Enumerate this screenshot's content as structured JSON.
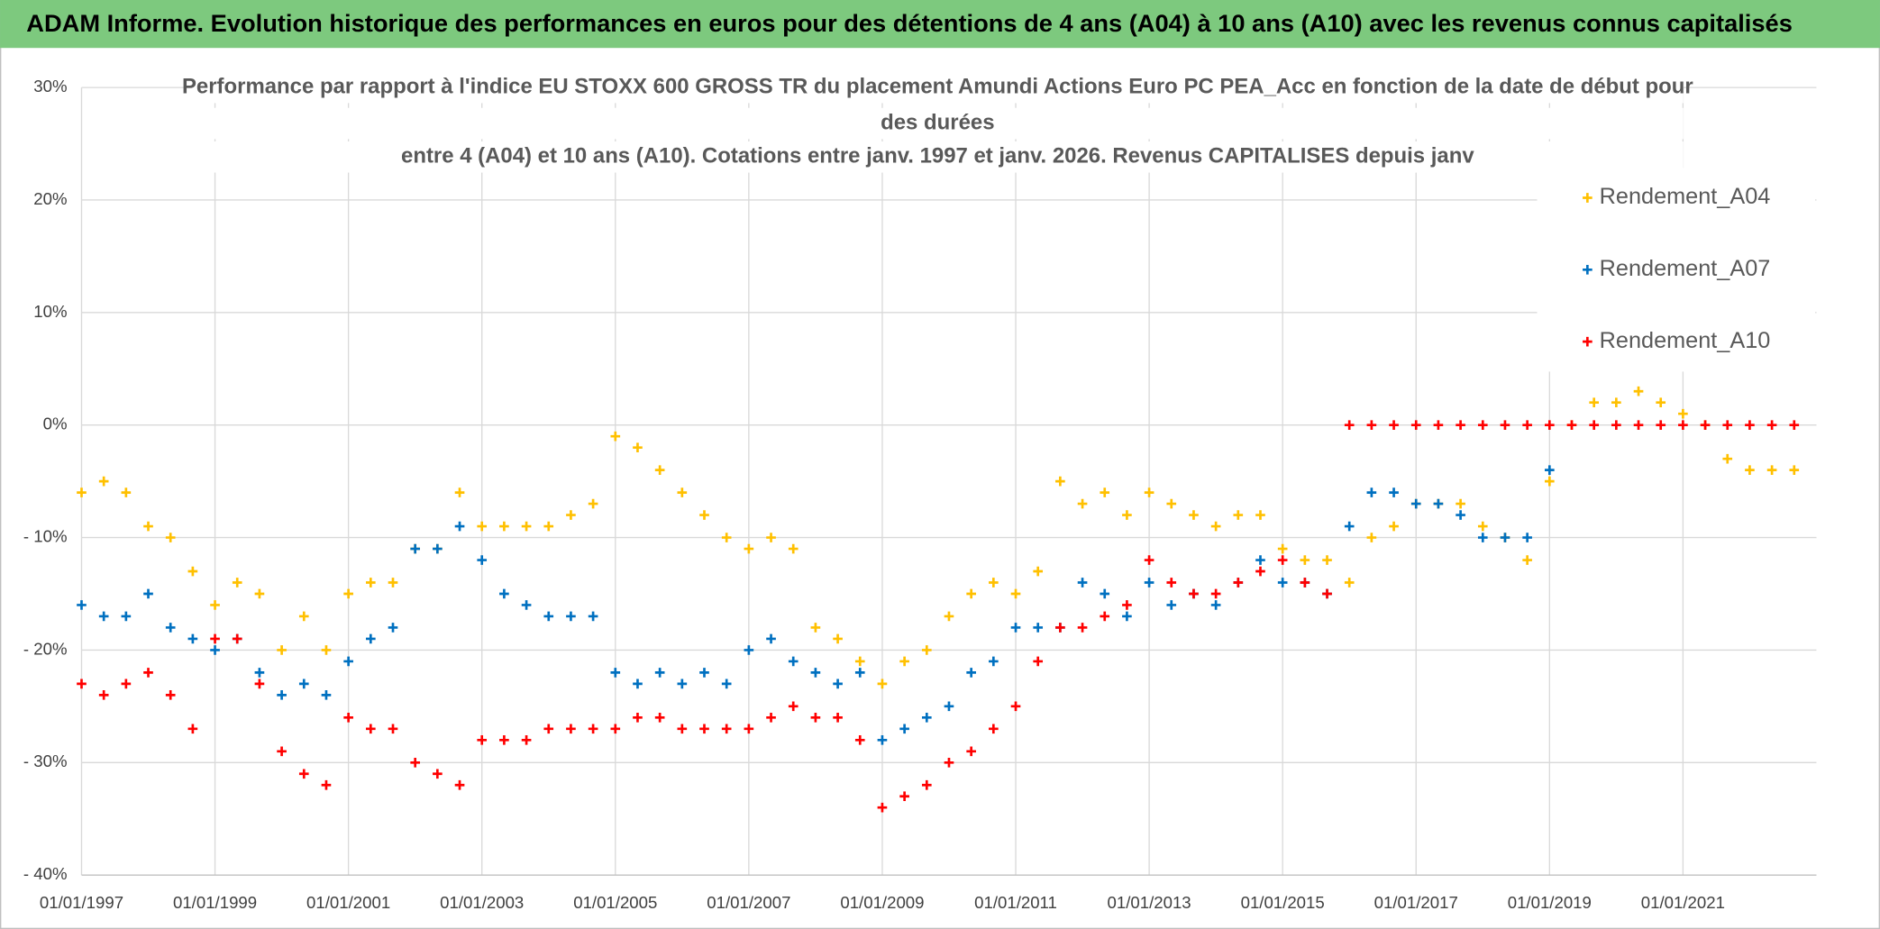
{
  "header": {
    "title": "ADAM Informe. Evolution historique des performances en euros pour des détentions de 4 ans (A04) à 10 ans (A10) avec les revenus connus capitalisés"
  },
  "chart_data": {
    "type": "scatter",
    "title": [
      "Performance par rapport à l'indice EU STOXX 600 GROSS TR  du placement Amundi Actions Euro PC PEA_Acc en fonction de la date de début pour",
      "des durées",
      "entre 4 (A04) et 10 ans (A10). Cotations entre janv. 1997 et janv. 2026. Revenus CAPITALISES depuis janv"
    ],
    "x": [
      "01/01/1997",
      "01/05/1997",
      "01/09/1997",
      "01/01/1998",
      "01/05/1998",
      "01/09/1998",
      "01/01/1999",
      "01/05/1999",
      "01/09/1999",
      "01/01/2000",
      "01/05/2000",
      "01/09/2000",
      "01/01/2001",
      "01/05/2001",
      "01/09/2001",
      "01/01/2002",
      "01/05/2002",
      "01/09/2002",
      "01/01/2003",
      "01/05/2003",
      "01/09/2003",
      "01/01/2004",
      "01/05/2004",
      "01/09/2004",
      "01/01/2005",
      "01/05/2005",
      "01/09/2005",
      "01/01/2006",
      "01/05/2006",
      "01/09/2006",
      "01/01/2007",
      "01/05/2007",
      "01/09/2007",
      "01/01/2008",
      "01/05/2008",
      "01/09/2008",
      "01/01/2009",
      "01/05/2009",
      "01/09/2009",
      "01/01/2010",
      "01/05/2010",
      "01/09/2010",
      "01/01/2011",
      "01/05/2011",
      "01/09/2011",
      "01/01/2012",
      "01/05/2012",
      "01/09/2012",
      "01/01/2013",
      "01/05/2013",
      "01/09/2013",
      "01/01/2014",
      "01/05/2014",
      "01/09/2014",
      "01/01/2015",
      "01/05/2015",
      "01/09/2015",
      "01/01/2016",
      "01/05/2016",
      "01/09/2016",
      "01/01/2017",
      "01/05/2017",
      "01/09/2017",
      "01/01/2018",
      "01/05/2018",
      "01/09/2018",
      "01/01/2019",
      "01/05/2019",
      "01/09/2019",
      "01/01/2020",
      "01/05/2020",
      "01/09/2020",
      "01/01/2021",
      "01/05/2021",
      "01/09/2021",
      "01/01/2022",
      "01/05/2022",
      "01/09/2022"
    ],
    "series": [
      {
        "name": "Rendement_A04",
        "color": "#ffc000",
        "values": [
          -6,
          -5,
          -6,
          -9,
          -10,
          -13,
          -16,
          -14,
          -15,
          -20,
          -17,
          -20,
          -15,
          -14,
          -14,
          -11,
          -11,
          -6,
          -9,
          -9,
          -9,
          -9,
          -8,
          -7,
          -1,
          -2,
          -4,
          -6,
          -8,
          -10,
          -11,
          -10,
          -11,
          -18,
          -19,
          -21,
          -23,
          -21,
          -20,
          -17,
          -15,
          -14,
          -15,
          -13,
          -5,
          -7,
          -6,
          -8,
          -6,
          -7,
          -8,
          -9,
          -8,
          -8,
          -11,
          -12,
          -12,
          -14,
          -10,
          -9,
          -7,
          -7,
          -7,
          -9,
          -10,
          -12,
          -5,
          0,
          2,
          2,
          3,
          2,
          1,
          0,
          -3,
          -4,
          -4,
          -4
        ]
      },
      {
        "name": "Rendement_A07",
        "color": "#0070c0",
        "values": [
          -16,
          -17,
          -17,
          -15,
          -18,
          -19,
          -20,
          -19,
          -22,
          -24,
          -23,
          -24,
          -21,
          -19,
          -18,
          -11,
          -11,
          -9,
          -12,
          -15,
          -16,
          -17,
          -17,
          -17,
          -22,
          -23,
          -22,
          -23,
          -22,
          -23,
          -20,
          -19,
          -21,
          -22,
          -23,
          -22,
          -28,
          -27,
          -26,
          -25,
          -22,
          -21,
          -18,
          -18,
          -18,
          -14,
          -15,
          -17,
          -14,
          -16,
          -15,
          -16,
          -14,
          -12,
          -14,
          -14,
          -15,
          -9,
          -6,
          -6,
          -7,
          -7,
          -8,
          -10,
          -10,
          -10,
          -4,
          null,
          null,
          null,
          null,
          null,
          null,
          null,
          null,
          null,
          null,
          null
        ]
      },
      {
        "name": "Rendement_A10",
        "color": "#ff0000",
        "values": [
          -23,
          -24,
          -23,
          -22,
          -24,
          -27,
          -19,
          -19,
          -23,
          -29,
          -31,
          -32,
          -26,
          -27,
          -27,
          -30,
          -31,
          -32,
          -28,
          -28,
          -28,
          -27,
          -27,
          -27,
          -27,
          -26,
          -26,
          -27,
          -27,
          -27,
          -27,
          -26,
          -25,
          -26,
          -26,
          -28,
          -34,
          -33,
          -32,
          -30,
          -29,
          -27,
          -25,
          -21,
          -18,
          -18,
          -17,
          -16,
          -12,
          -14,
          -15,
          -15,
          -14,
          -13,
          -12,
          -14,
          -15,
          0,
          0,
          0,
          0,
          0,
          0,
          0,
          0,
          0,
          0,
          0,
          0,
          0,
          0,
          0,
          0,
          0,
          0,
          0,
          0,
          0
        ]
      }
    ],
    "xlim": [
      "01/01/1997",
      "01/01/2023"
    ],
    "xticks": [
      "01/01/1997",
      "01/01/1999",
      "01/01/2001",
      "01/01/2003",
      "01/01/2005",
      "01/01/2007",
      "01/01/2009",
      "01/01/2011",
      "01/01/2013",
      "01/01/2015",
      "01/01/2017",
      "01/01/2019",
      "01/01/2021"
    ],
    "ylim": [
      -40,
      30
    ],
    "yticks": [
      {
        "value": 30,
        "label": "30%"
      },
      {
        "value": 20,
        "label": "20%"
      },
      {
        "value": 10,
        "label": "10%"
      },
      {
        "value": 0,
        "label": "0%"
      },
      {
        "value": -10,
        "label": "- 10%"
      },
      {
        "value": -20,
        "label": "- 20%"
      },
      {
        "value": -30,
        "label": "- 30%"
      },
      {
        "value": -40,
        "label": "- 40%"
      }
    ],
    "grid": true,
    "legend": "upper right"
  }
}
